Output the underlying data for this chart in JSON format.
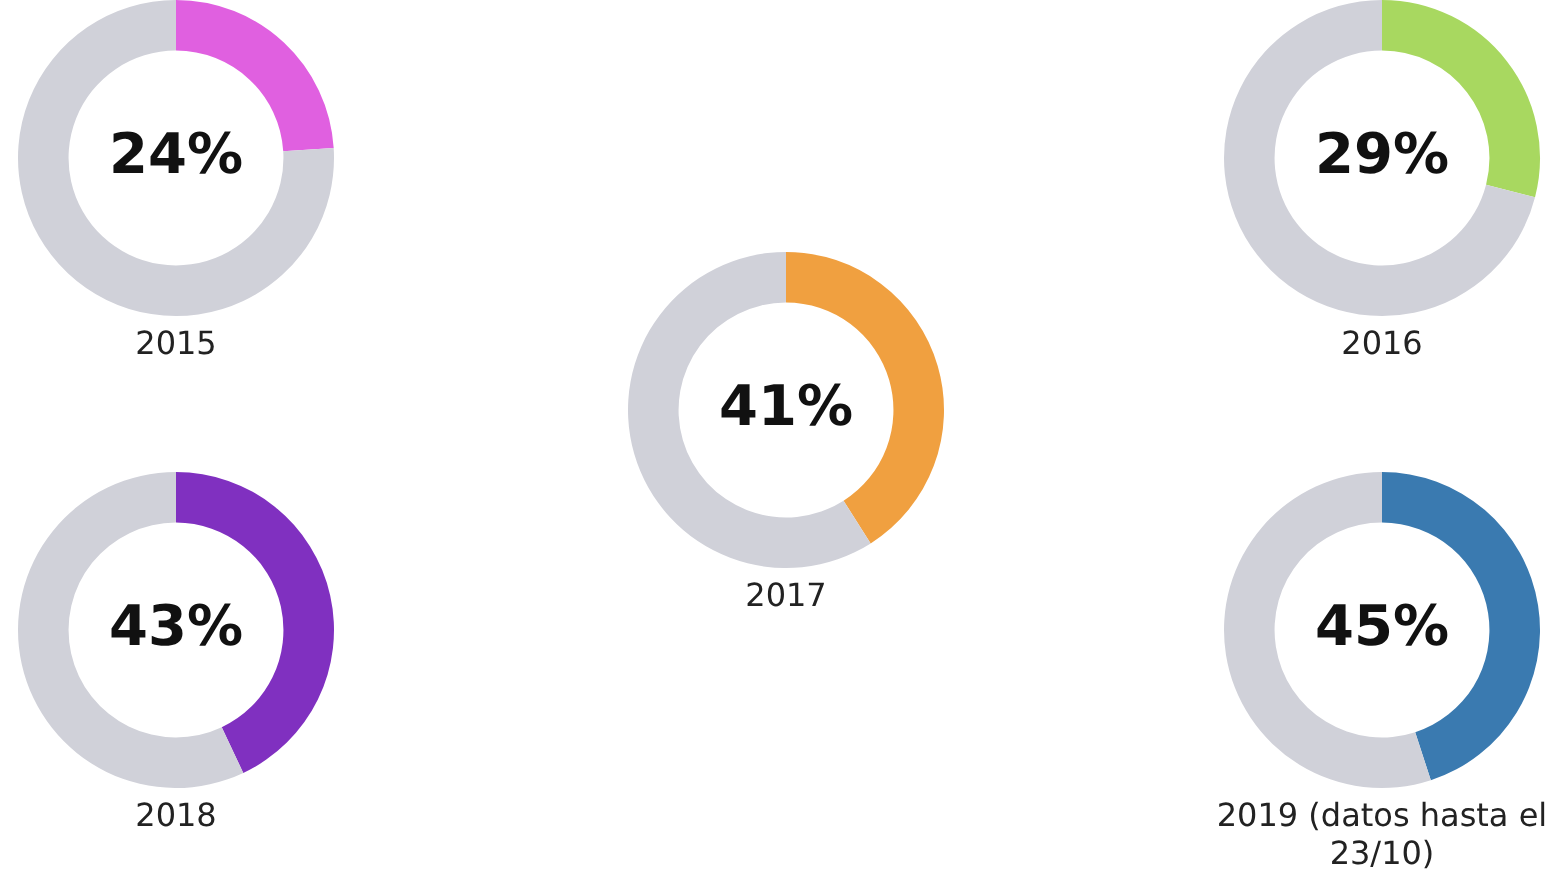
{
  "chart_data": [
    {
      "type": "donut",
      "title": "2015",
      "categories": [
        null,
        null
      ],
      "values": [
        24,
        76
      ],
      "colors": [
        "#e060e0",
        "#d0d1d9"
      ],
      "value_labels": [
        "24%",
        null
      ]
    },
    {
      "type": "donut",
      "title": "2016",
      "categories": [
        null,
        null
      ],
      "values": [
        29,
        71
      ],
      "colors": [
        "#a8d860",
        "#d0d1d9"
      ],
      "value_labels": [
        "29%",
        null
      ]
    },
    {
      "type": "donut",
      "title": "2017",
      "categories": [
        null,
        null
      ],
      "values": [
        41,
        59
      ],
      "colors": [
        "#f0a040",
        "#d0d1d9"
      ],
      "value_labels": [
        "41%",
        null
      ]
    },
    {
      "type": "donut",
      "title": "2018",
      "categories": [
        null,
        null
      ],
      "values": [
        43,
        57
      ],
      "colors": [
        "#8030c0",
        "#d0d1d9"
      ],
      "value_labels": [
        "43%",
        null
      ]
    },
    {
      "type": "donut",
      "title": "2019 (datos hasta el 23/10)",
      "categories": [
        null,
        null
      ],
      "values": [
        45,
        55
      ],
      "colors": [
        "#3a7ab0",
        "#d0d1d9"
      ],
      "value_labels": [
        "45%",
        null
      ]
    }
  ]
}
